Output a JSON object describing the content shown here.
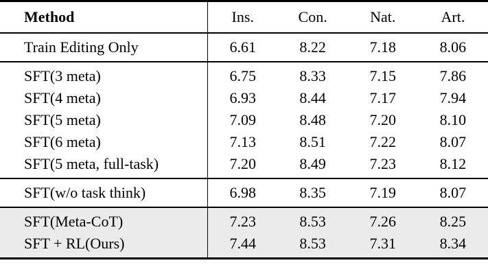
{
  "table": {
    "columns": [
      "Method",
      "Ins.",
      "Con.",
      "Nat.",
      "Art."
    ],
    "sections": [
      {
        "name": "baseline",
        "highlight": false,
        "rows": [
          {
            "method": "Train Editing Only",
            "values": [
              "6.61",
              "8.22",
              "7.18",
              "8.06"
            ]
          }
        ]
      },
      {
        "name": "sft-meta-ablation",
        "highlight": false,
        "rows": [
          {
            "method": "SFT(3 meta)",
            "values": [
              "6.75",
              "8.33",
              "7.15",
              "7.86"
            ]
          },
          {
            "method": "SFT(4 meta)",
            "values": [
              "6.93",
              "8.44",
              "7.17",
              "7.94"
            ]
          },
          {
            "method": "SFT(5 meta)",
            "values": [
              "7.09",
              "8.48",
              "7.20",
              "8.10"
            ]
          },
          {
            "method": "SFT(6 meta)",
            "values": [
              "7.13",
              "8.51",
              "7.22",
              "8.07"
            ]
          },
          {
            "method": "SFT(5 meta, full-task)",
            "values": [
              "7.20",
              "8.49",
              "7.23",
              "8.12"
            ]
          }
        ]
      },
      {
        "name": "sft-wo-task-think",
        "highlight": false,
        "rows": [
          {
            "method": "SFT(w/o task think)",
            "values": [
              "6.98",
              "8.35",
              "7.19",
              "8.07"
            ]
          }
        ]
      },
      {
        "name": "ours",
        "highlight": true,
        "rows": [
          {
            "method": "SFT(Meta-CoT)",
            "values": [
              "7.23",
              "8.53",
              "7.26",
              "8.25"
            ]
          },
          {
            "method": "SFT + RL(Ours)",
            "values": [
              "7.44",
              "8.53",
              "7.31",
              "8.34"
            ]
          }
        ]
      }
    ],
    "colors": {
      "highlight_bg": "#ebebeb",
      "rule": "#000000"
    }
  }
}
